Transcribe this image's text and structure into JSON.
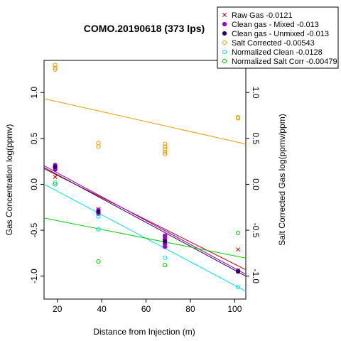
{
  "chart_data": {
    "type": "scatter",
    "title": "COMO.20190618 (373 lps)",
    "xlabel": "Distance from Injection (m)",
    "ylabel": "Gas Concentration log(ppmv)",
    "ylabel_right": "Salt Corrected Gas log(ppmv/ppm)",
    "xlim": [
      14,
      105
    ],
    "ylim": [
      -1.25,
      1.35
    ],
    "xticks": [
      20,
      40,
      60,
      80,
      100
    ],
    "yticks": [
      -1.0,
      -0.5,
      0.0,
      0.5,
      1.0
    ],
    "ytick_labels": [
      "-1.0",
      "-0.5",
      "0.0",
      "0.5",
      "1.0"
    ],
    "grid": false,
    "legend_position": "top-right",
    "series": [
      {
        "name": "Raw Gas -0.0121",
        "color": "#cc0000",
        "marker": "x",
        "points": [
          [
            19,
            0.08
          ],
          [
            38.5,
            -0.27
          ],
          [
            38.5,
            -0.3
          ],
          [
            68.5,
            -0.56
          ],
          [
            68.5,
            -0.6
          ],
          [
            68.5,
            -0.63
          ],
          [
            101.5,
            -0.71
          ],
          [
            101.5,
            -0.94
          ]
        ],
        "fit": {
          "slope": -0.0121,
          "intercept": 0.34
        }
      },
      {
        "name": "Clean gas - Mixed -0.013",
        "color": "#9900cc",
        "marker": "filled-circle",
        "points": [
          [
            19,
            0.21
          ],
          [
            19,
            0.18
          ],
          [
            19,
            0.16
          ],
          [
            38.5,
            -0.28
          ],
          [
            38.5,
            -0.32
          ],
          [
            68.5,
            -0.56
          ],
          [
            68.5,
            -0.6
          ],
          [
            68.5,
            -0.65
          ],
          [
            68.5,
            -0.68
          ],
          [
            101.5,
            -0.94
          ]
        ],
        "fit": {
          "slope": -0.013,
          "intercept": 0.385
        }
      },
      {
        "name": "Clean gas - Unmixed -0.013",
        "color": "#330066",
        "marker": "filled-circle",
        "points": [
          [
            19,
            0.19
          ],
          [
            38.5,
            -0.3
          ],
          [
            68.5,
            -0.62
          ],
          [
            101.5,
            -0.95
          ]
        ],
        "fit": {
          "slope": -0.013,
          "intercept": 0.365
        }
      },
      {
        "name": "Salt Corrected -0.00543",
        "color": "#e69f00",
        "marker": "open-circle",
        "points": [
          [
            19,
            1.3
          ],
          [
            19,
            1.27
          ],
          [
            19,
            1.25
          ],
          [
            38.5,
            0.45
          ],
          [
            38.5,
            0.41
          ],
          [
            68.5,
            0.44
          ],
          [
            68.5,
            0.41
          ],
          [
            68.5,
            0.38
          ],
          [
            68.5,
            0.35
          ],
          [
            68.5,
            0.33
          ],
          [
            101.5,
            0.73
          ],
          [
            101.5,
            0.72
          ]
        ],
        "fit": {
          "slope": -0.00543,
          "intercept": 1.009
        }
      },
      {
        "name": "Normalized Clean -0.0128",
        "color": "#00e5ee",
        "marker": "open-circle",
        "points": [
          [
            19,
            0.02
          ],
          [
            38.5,
            -0.35
          ],
          [
            38.5,
            -0.49
          ],
          [
            68.5,
            -0.8
          ],
          [
            101.5,
            -1.12
          ]
        ],
        "fit": {
          "slope": -0.0128,
          "intercept": 0.18
        }
      },
      {
        "name": "Normalized Salt Corr -0.00479",
        "color": "#00cc00",
        "marker": "open-circle",
        "points": [
          [
            19,
            0.0
          ],
          [
            38.5,
            -0.84
          ],
          [
            68.5,
            -0.88
          ],
          [
            101.5,
            -0.53
          ]
        ],
        "fit": {
          "slope": -0.00479,
          "intercept": -0.3
        }
      }
    ]
  }
}
